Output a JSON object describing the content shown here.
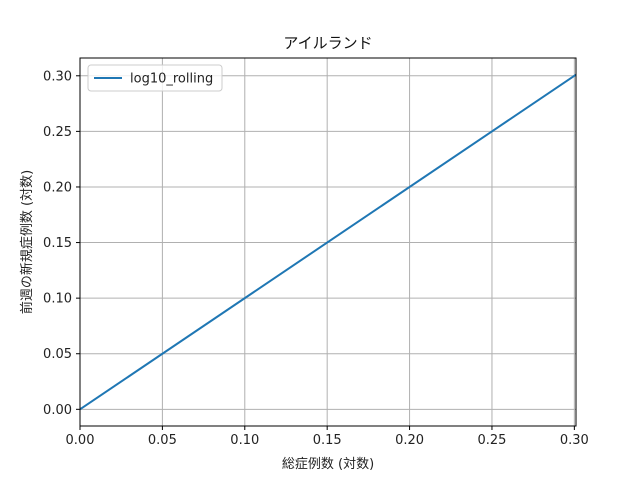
{
  "chart_data": {
    "type": "line",
    "title": "アイルランド",
    "xlabel": "総症例数 (対数)",
    "ylabel": "前週の新規症例数 (対数)",
    "xlim": [
      0.0,
      0.301
    ],
    "ylim": [
      -0.015,
      0.316
    ],
    "x_ticks": [
      0.0,
      0.05,
      0.1,
      0.15,
      0.2,
      0.25,
      0.3
    ],
    "x_tick_labels": [
      "0.00",
      "0.05",
      "0.10",
      "0.15",
      "0.20",
      "0.25",
      "0.30"
    ],
    "y_ticks": [
      0.0,
      0.05,
      0.1,
      0.15,
      0.2,
      0.25,
      0.3
    ],
    "y_tick_labels": [
      "0.00",
      "0.05",
      "0.10",
      "0.15",
      "0.20",
      "0.25",
      "0.30"
    ],
    "grid": true,
    "legend_position": "top-left",
    "series": [
      {
        "name": "log10_rolling",
        "color": "#1f77b4",
        "x": [
          0.0,
          0.301
        ],
        "y": [
          0.0,
          0.301
        ]
      }
    ]
  }
}
